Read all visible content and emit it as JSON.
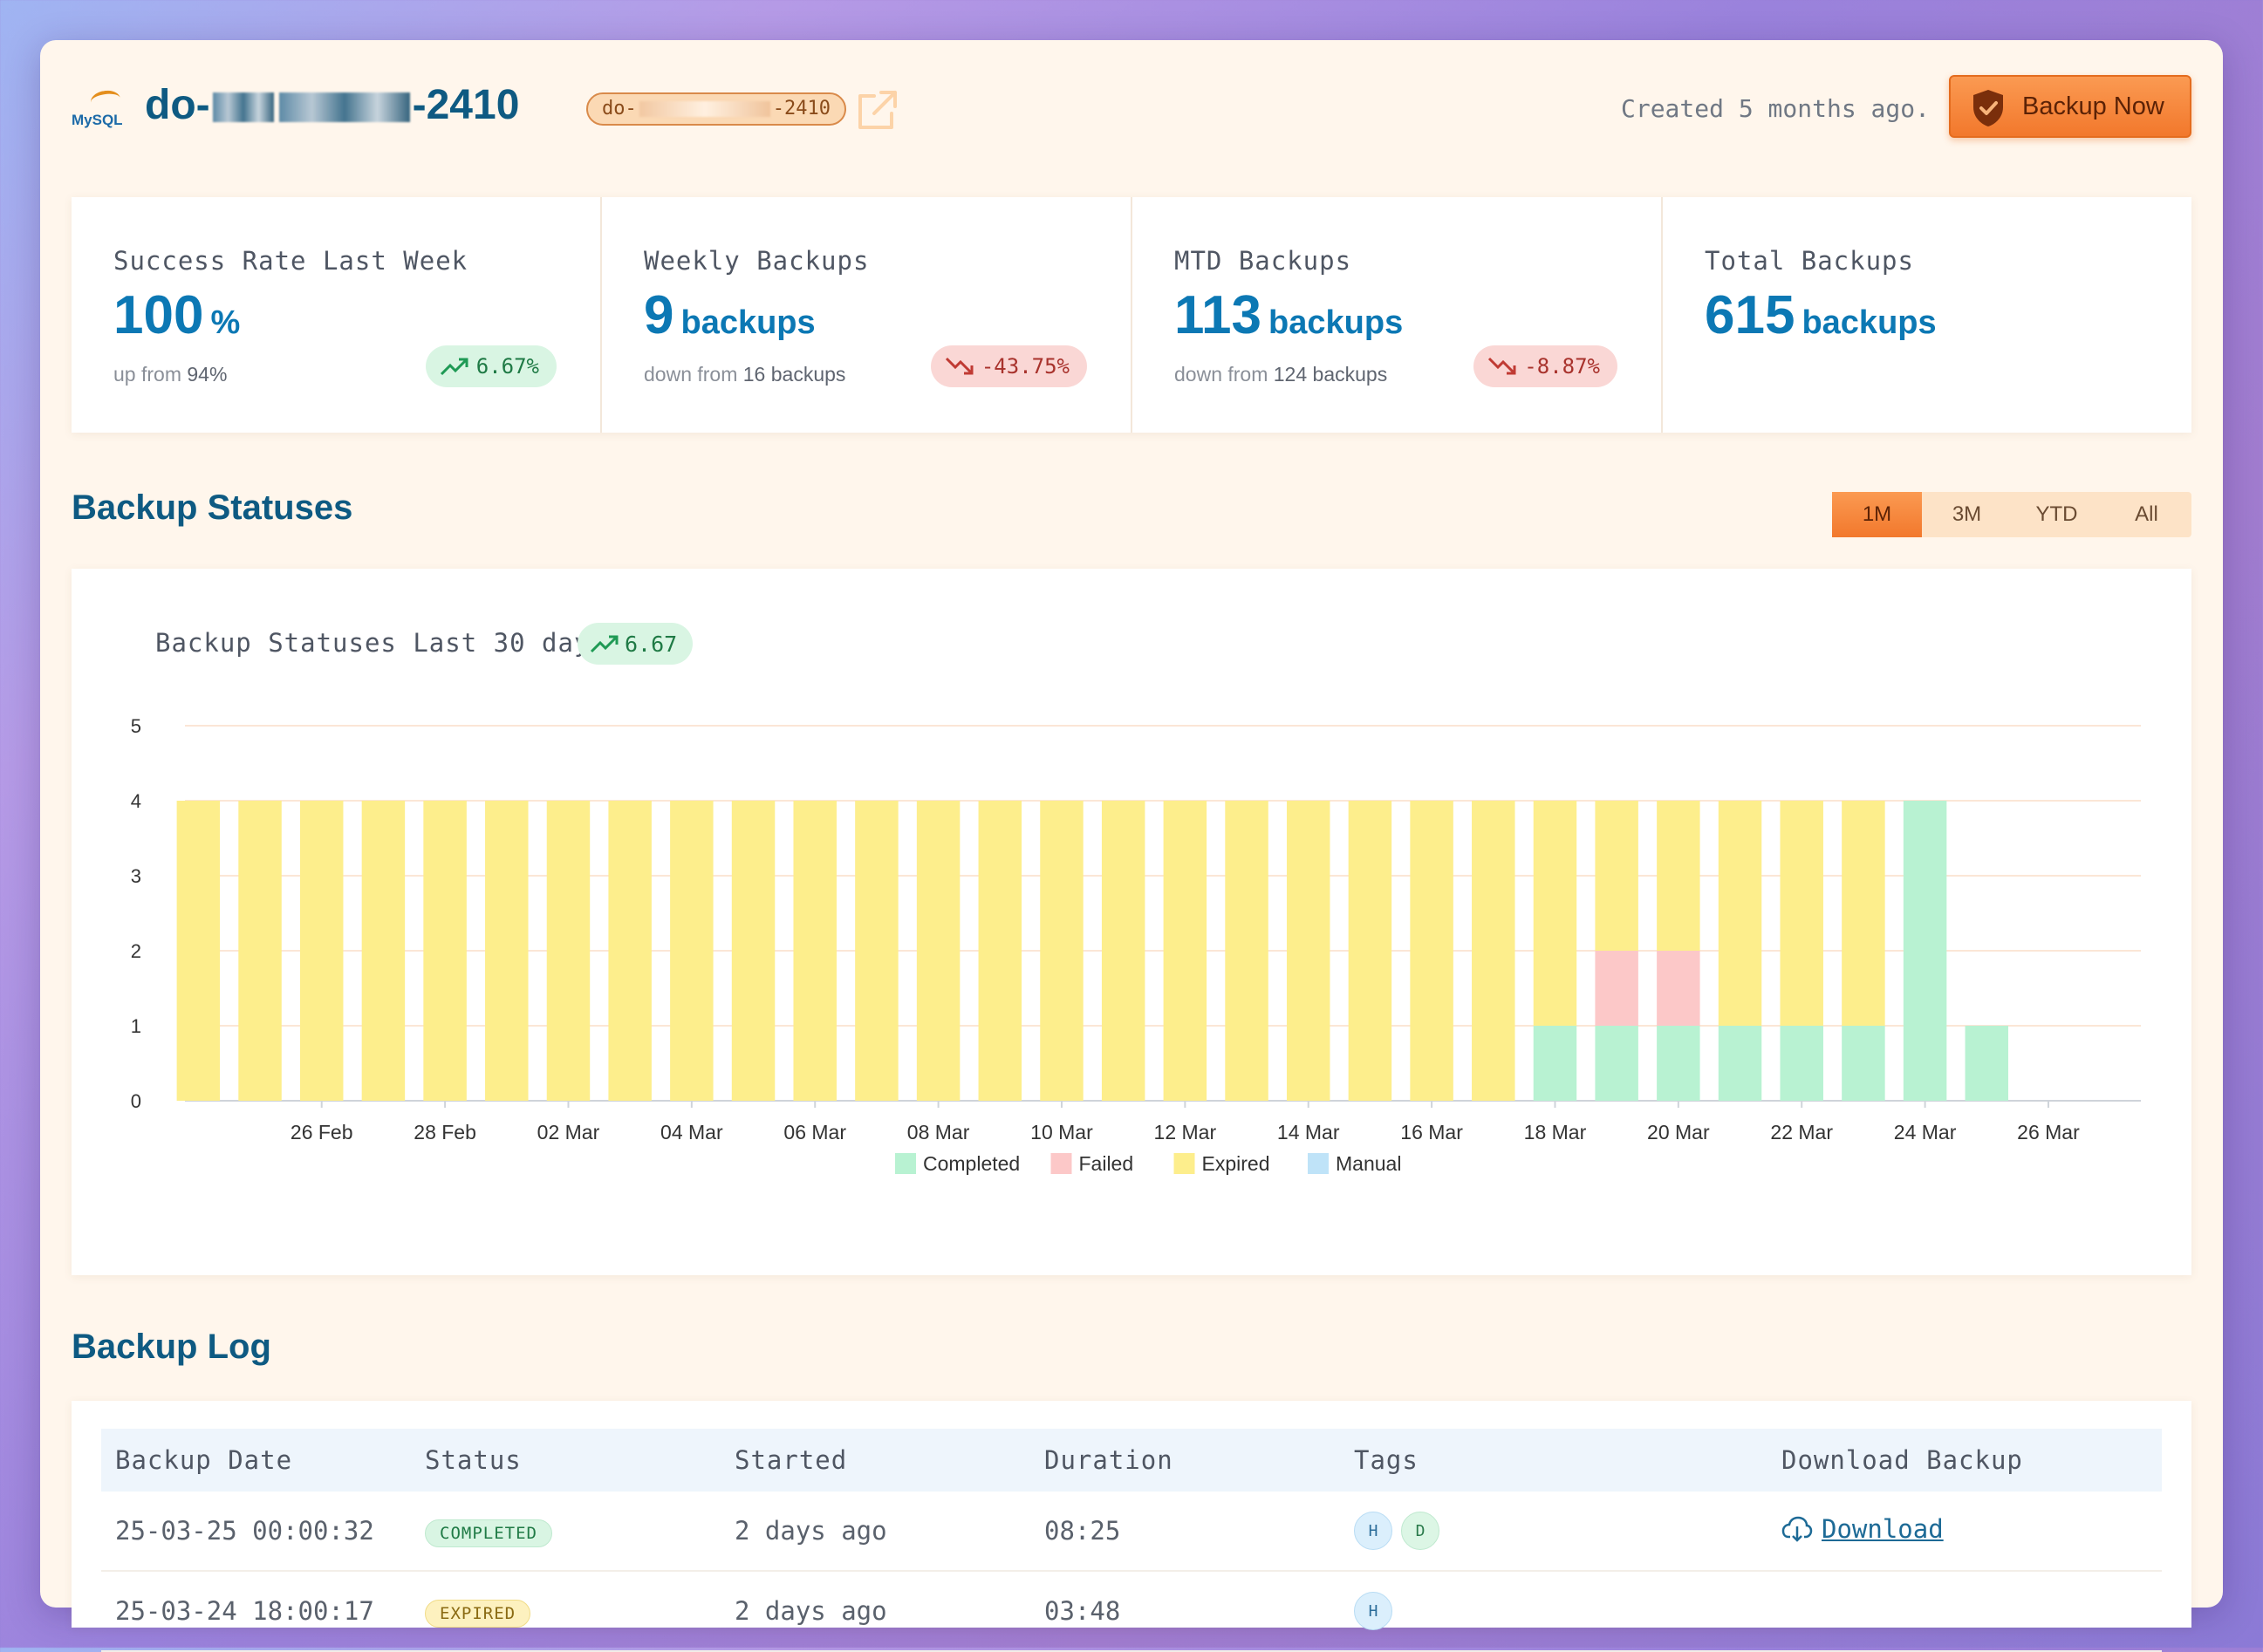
{
  "header": {
    "logo_text": "MySQL",
    "db_name_prefix": "do-",
    "db_name_suffix": "-2410",
    "db_chip_prefix": "do-",
    "db_chip_suffix": "-2410",
    "created_text": "Created 5 months ago.",
    "backup_button_label": "Backup Now"
  },
  "stats": [
    {
      "title": "Success Rate Last Week",
      "value": "100",
      "unit": "%",
      "sub_prefix": "up from ",
      "sub_value": "94%",
      "delta": "6.67%",
      "trend": "up"
    },
    {
      "title": "Weekly Backups",
      "value": "9",
      "unit": "backups",
      "sub_prefix": "down from ",
      "sub_value": "16 backups",
      "delta": "-43.75%",
      "trend": "down"
    },
    {
      "title": "MTD Backups",
      "value": "113",
      "unit": "backups",
      "sub_prefix": "down from ",
      "sub_value": "124 backups",
      "delta": "-8.87%",
      "trend": "down"
    },
    {
      "title": "Total Backups",
      "value": "615",
      "unit": "backups",
      "sub_prefix": "",
      "sub_value": "",
      "delta": "",
      "trend": ""
    }
  ],
  "statuses_section": {
    "title": "Backup Statuses",
    "ranges": [
      "1M",
      "3M",
      "YTD",
      "All"
    ],
    "active_range": "1M",
    "chart_title": "Backup Statuses Last 30 days",
    "chart_delta": "6.67"
  },
  "chart_data": {
    "type": "bar",
    "stacked": true,
    "categories": [
      "24 Feb",
      "25 Feb",
      "26 Feb",
      "27 Feb",
      "28 Feb",
      "01 Mar",
      "02 Mar",
      "03 Mar",
      "04 Mar",
      "05 Mar",
      "06 Mar",
      "07 Mar",
      "08 Mar",
      "09 Mar",
      "10 Mar",
      "11 Mar",
      "12 Mar",
      "13 Mar",
      "14 Mar",
      "15 Mar",
      "16 Mar",
      "17 Mar",
      "18 Mar",
      "19 Mar",
      "20 Mar",
      "21 Mar",
      "22 Mar",
      "23 Mar",
      "24 Mar",
      "25 Mar",
      "26 Mar",
      "27 Mar"
    ],
    "tick_labels": [
      "26 Feb",
      "28 Feb",
      "02 Mar",
      "04 Mar",
      "06 Mar",
      "08 Mar",
      "10 Mar",
      "12 Mar",
      "14 Mar",
      "16 Mar",
      "18 Mar",
      "20 Mar",
      "22 Mar",
      "24 Mar",
      "26 Mar"
    ],
    "series": [
      {
        "name": "Completed",
        "color": "#b8f2d2",
        "values": [
          0,
          0,
          0,
          0,
          0,
          0,
          0,
          0,
          0,
          0,
          0,
          0,
          0,
          0,
          0,
          0,
          0,
          0,
          0,
          0,
          0,
          0,
          1,
          1,
          1,
          1,
          1,
          1,
          4,
          1,
          0,
          0
        ]
      },
      {
        "name": "Failed",
        "color": "#fcc8c8",
        "values": [
          0,
          0,
          0,
          0,
          0,
          0,
          0,
          0,
          0,
          0,
          0,
          0,
          0,
          0,
          0,
          0,
          0,
          0,
          0,
          0,
          0,
          0,
          0,
          1,
          1,
          0,
          0,
          0,
          0,
          0,
          0,
          0
        ]
      },
      {
        "name": "Expired",
        "color": "#fdee8c",
        "values": [
          4,
          4,
          4,
          4,
          4,
          4,
          4,
          4,
          4,
          4,
          4,
          4,
          4,
          4,
          4,
          4,
          4,
          4,
          4,
          4,
          4,
          4,
          3,
          2,
          2,
          3,
          3,
          3,
          0,
          0,
          0,
          0
        ]
      },
      {
        "name": "Manual",
        "color": "#bfe3f8",
        "values": [
          0,
          0,
          0,
          0,
          0,
          0,
          0,
          0,
          0,
          0,
          0,
          0,
          0,
          0,
          0,
          0,
          0,
          0,
          0,
          0,
          0,
          0,
          0,
          0,
          0,
          0,
          0,
          0,
          0,
          0,
          0,
          0
        ]
      }
    ],
    "y_ticks": [
      "0",
      "1",
      "2",
      "3",
      "4",
      "5"
    ],
    "ylim": [
      0,
      5
    ],
    "grid": true,
    "legend": "bottom"
  },
  "log_section": {
    "title": "Backup Log",
    "columns": [
      "Backup Date",
      "Status",
      "Started",
      "Duration",
      "Tags",
      "Download Backup"
    ],
    "rows": [
      {
        "date": "25-03-25 00:00:32",
        "status": "COMPLETED",
        "status_kind": "completed",
        "started": "2 days ago",
        "duration": "08:25",
        "tags": [
          "H",
          "D"
        ],
        "download": " Download"
      },
      {
        "date": "25-03-24 18:00:17",
        "status": "EXPIRED",
        "status_kind": "expired",
        "started": "2 days ago",
        "duration": "03:48",
        "tags": [
          "H"
        ],
        "download": ""
      }
    ]
  }
}
